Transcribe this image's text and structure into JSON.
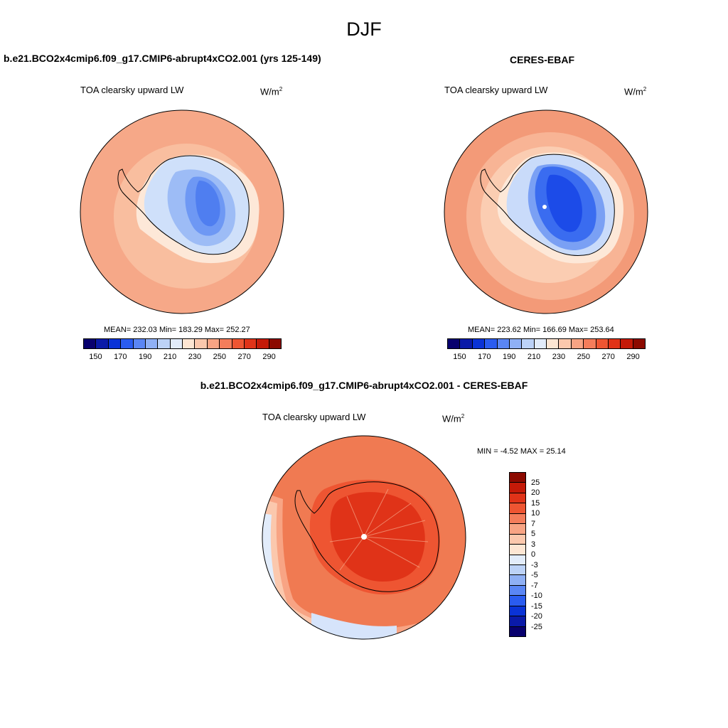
{
  "season": "DJF",
  "panels": [
    {
      "title": "b.e21.BCO2x4cmip6.f09_g17.CMIP6-abrupt4xCO2.001 (yrs 125-149)",
      "field": "TOA clearsky upward LW",
      "units": "W/m",
      "units_exp": "2",
      "stats": "MEAN= 232.03  Min= 183.29  Max= 252.27"
    },
    {
      "title": "CERES-EBAF",
      "field": "TOA clearsky upward LW",
      "units": "W/m",
      "units_exp": "2",
      "stats": "MEAN= 223.62  Min= 166.69  Max= 253.64"
    },
    {
      "title": "b.e21.BCO2x4cmip6.f09_g17.CMIP6-abrupt4xCO2.001 - CERES-EBAF",
      "field": "TOA clearsky upward LW",
      "units": "W/m",
      "units_exp": "2",
      "stats": "MIN =  -4.52 MAX =  25.14"
    }
  ],
  "abs_colorbar": {
    "colors": [
      "#08006e",
      "#0a1aa8",
      "#0a33d6",
      "#2a5cf0",
      "#5a86f5",
      "#8fb0f5",
      "#bcd2f7",
      "#e2ecfa",
      "#fde6d3",
      "#fbc8ad",
      "#f8a484",
      "#f47d5b",
      "#ee5532",
      "#e03318",
      "#c41a08",
      "#8c0a00"
    ],
    "tick_labels": [
      "150",
      "170",
      "190",
      "210",
      "230",
      "250",
      "270",
      "290"
    ]
  },
  "diff_colorbar": {
    "colors": [
      "#08006e",
      "#0a1aa8",
      "#0a33d6",
      "#2a5cf0",
      "#5a86f5",
      "#8fb0f5",
      "#bcd2f7",
      "#e2ecfa",
      "#fde6d3",
      "#fbc8ad",
      "#f8a484",
      "#f47d5b",
      "#ee5532",
      "#e03318",
      "#c41a08",
      "#8c0a00"
    ],
    "tick_labels": [
      "-25",
      "-20",
      "-15",
      "-10",
      "-7",
      "-5",
      "-3",
      "0",
      "3",
      "5",
      "7",
      "10",
      "15",
      "20",
      "25"
    ]
  }
}
